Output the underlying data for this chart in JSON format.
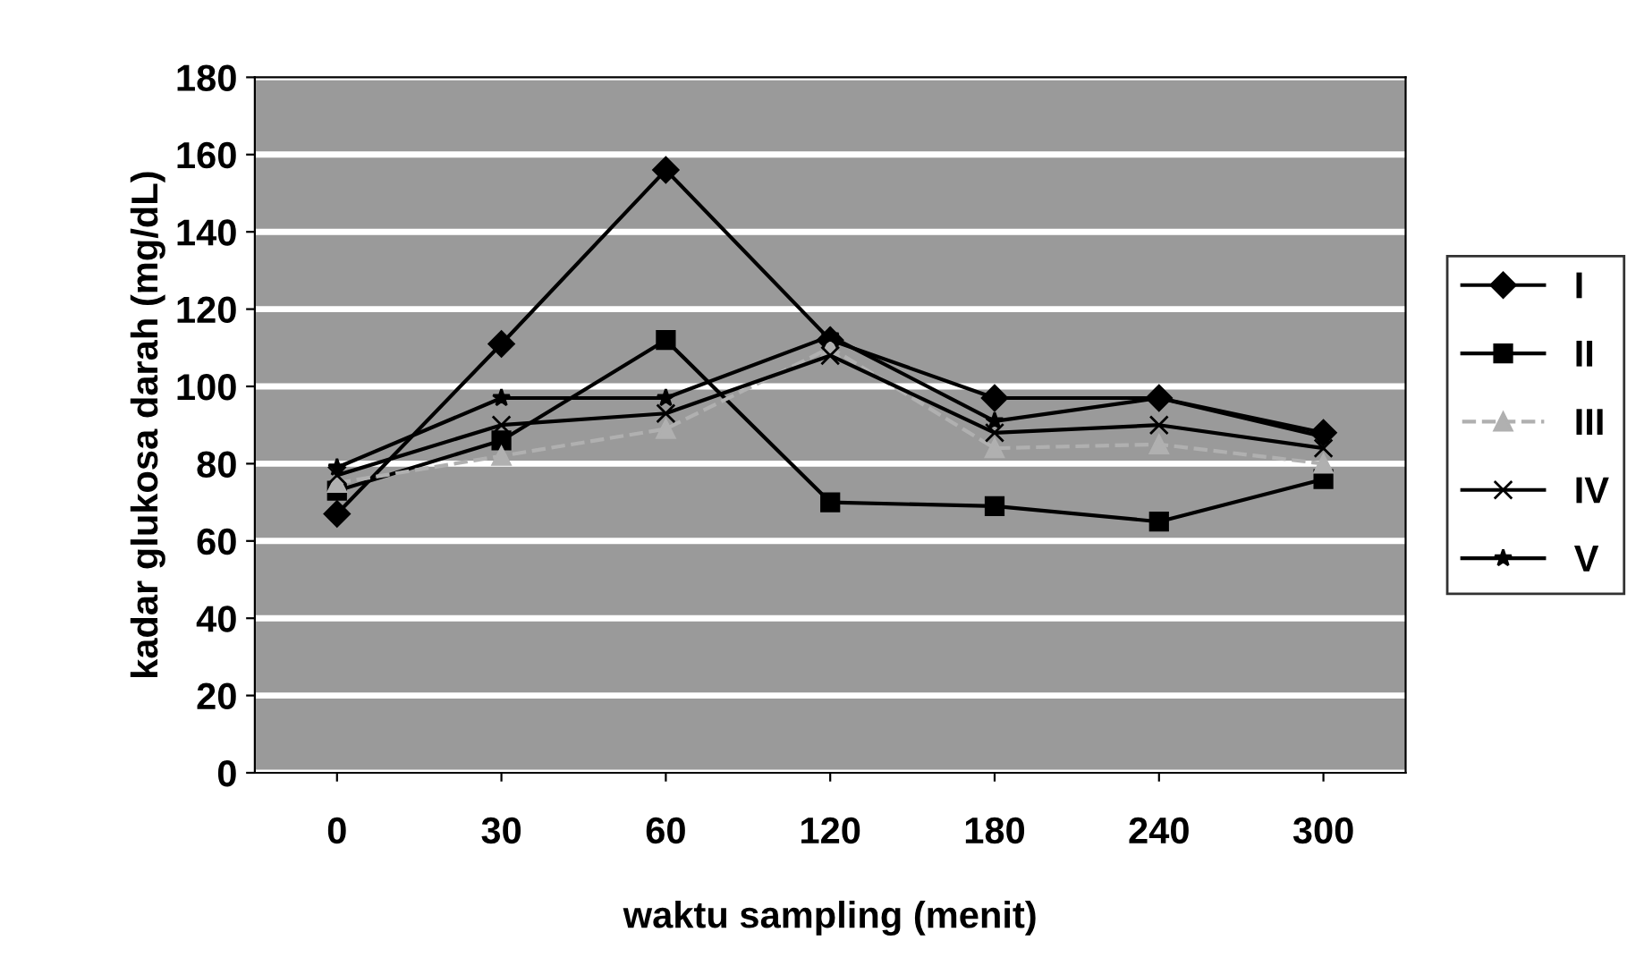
{
  "chart_data": {
    "type": "line",
    "xlabel": "waktu sampling (menit)",
    "ylabel": "kadar glukosa darah (mg/dL)",
    "categories": [
      "0",
      "30",
      "60",
      "120",
      "180",
      "240",
      "300"
    ],
    "ylim": [
      0,
      180
    ],
    "yticks": [
      0,
      20,
      40,
      60,
      80,
      100,
      120,
      140,
      160,
      180
    ],
    "grid": "y",
    "legend": "right",
    "series": [
      {
        "name": "I",
        "color": "#000000",
        "marker": "diamond",
        "line_style": "solid",
        "values": [
          67,
          111,
          156,
          112,
          97,
          97,
          88
        ]
      },
      {
        "name": "II",
        "color": "#000000",
        "marker": "square",
        "line_style": "solid",
        "values": [
          73,
          86,
          112,
          70,
          69,
          65,
          76
        ]
      },
      {
        "name": "III",
        "color": "#b0b0b0",
        "marker": "triangle",
        "line_style": "dashed",
        "values": [
          75,
          82,
          89,
          110,
          84,
          85,
          80
        ]
      },
      {
        "name": "IV",
        "color": "#000000",
        "marker": "cross",
        "line_style": "solid",
        "values": [
          77,
          90,
          93,
          108,
          88,
          90,
          84
        ]
      },
      {
        "name": "V",
        "color": "#000000",
        "marker": "star",
        "line_style": "solid",
        "values": [
          79,
          97,
          97,
          113,
          91,
          97,
          87
        ]
      }
    ]
  }
}
